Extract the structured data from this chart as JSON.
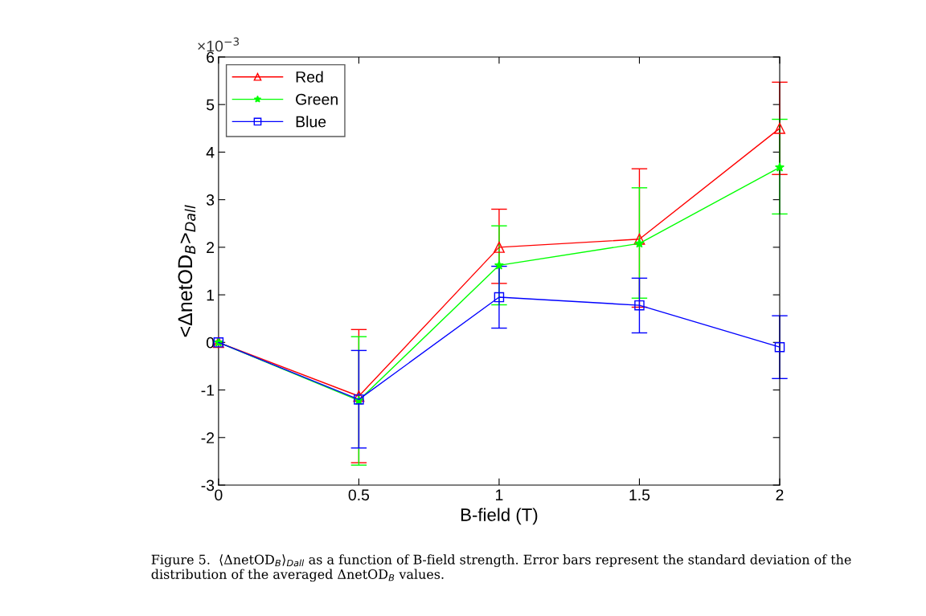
{
  "chart_data": {
    "type": "line",
    "xlabel": "B-field (T)",
    "ylabel": "<ΔnetOD$_{B}$>$_{Dall}$",
    "x": [
      0,
      0.5,
      1,
      1.5,
      2
    ],
    "series": [
      {
        "name": "Red",
        "color": "#ff0000",
        "marker": "triangle",
        "values": [
          0,
          -1.13,
          2.0,
          2.17,
          4.5
        ],
        "errors": [
          null,
          [
            -2.53,
            0.27
          ],
          [
            1.24,
            2.8
          ],
          [
            0.74,
            3.65
          ],
          [
            3.53,
            5.47
          ]
        ]
      },
      {
        "name": "Green",
        "color": "#00ff00",
        "marker": "star",
        "values": [
          0,
          -1.22,
          1.62,
          2.08,
          3.68
        ],
        "errors": [
          null,
          [
            -2.58,
            0.12
          ],
          [
            0.79,
            2.45
          ],
          [
            0.93,
            3.25
          ],
          [
            2.7,
            4.69
          ]
        ]
      },
      {
        "name": "Blue",
        "color": "#0000ff",
        "marker": "square",
        "values": [
          0,
          -1.2,
          0.95,
          0.78,
          -0.1
        ],
        "errors": [
          null,
          [
            -2.22,
            -0.17
          ],
          [
            0.3,
            1.6
          ],
          [
            0.2,
            1.35
          ],
          [
            -0.76,
            0.56
          ]
        ]
      }
    ],
    "xlim": [
      0,
      2
    ],
    "xticks": [
      0,
      0.5,
      1,
      1.5,
      2
    ],
    "ylim": [
      -3,
      6
    ],
    "yticks": [
      -3,
      -2,
      -1,
      0,
      1,
      2,
      3,
      4,
      5,
      6
    ],
    "grid": false,
    "legend": "top left",
    "line_style": "solid",
    "annotations": [
      "×10$^{−3}$",
      "Figure 5.  ⟨ΔnetOD$_{B}$⟩$_{Dall}$ as a function of B-field strength. Error bars represent the standard deviation of the distribution of the averaged ΔnetOD$_{B}$ values."
    ]
  }
}
